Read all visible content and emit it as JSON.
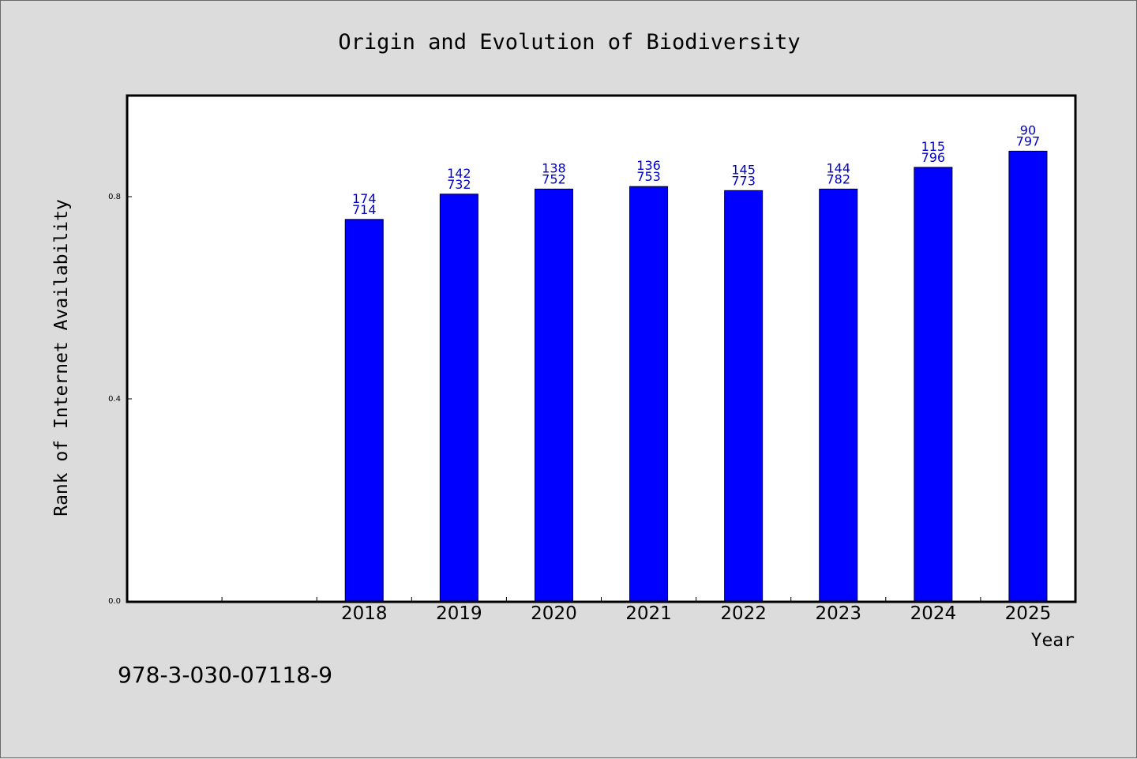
{
  "chart_data": {
    "type": "bar",
    "title": "Origin and Evolution of Biodiversity",
    "xlabel": "Year",
    "ylabel": "Rank of Internet Availability",
    "categories": [
      "",
      "",
      "2018",
      "2019",
      "2020",
      "2021",
      "2022",
      "2023",
      "2024",
      "2025"
    ],
    "values": [
      null,
      null,
      0.755,
      0.805,
      0.815,
      0.82,
      0.812,
      0.815,
      0.858,
      0.89
    ],
    "label_top": [
      "",
      "",
      "174",
      "142",
      "138",
      "136",
      "145",
      "144",
      "115",
      "90"
    ],
    "label_bottom": [
      "",
      "",
      "714",
      "732",
      "752",
      "753",
      "773",
      "782",
      "796",
      "797"
    ],
    "ylim": [
      0,
      1.0
    ],
    "yticks": [
      0.0,
      0.4,
      0.8
    ],
    "ytick_labels": [
      "0.0",
      "0.4",
      "0.8"
    ],
    "grid": false,
    "legend": "none",
    "bar_color": "#0000ff",
    "label_color": "#0000cc"
  },
  "footer_text": "978-3-030-07118-9"
}
